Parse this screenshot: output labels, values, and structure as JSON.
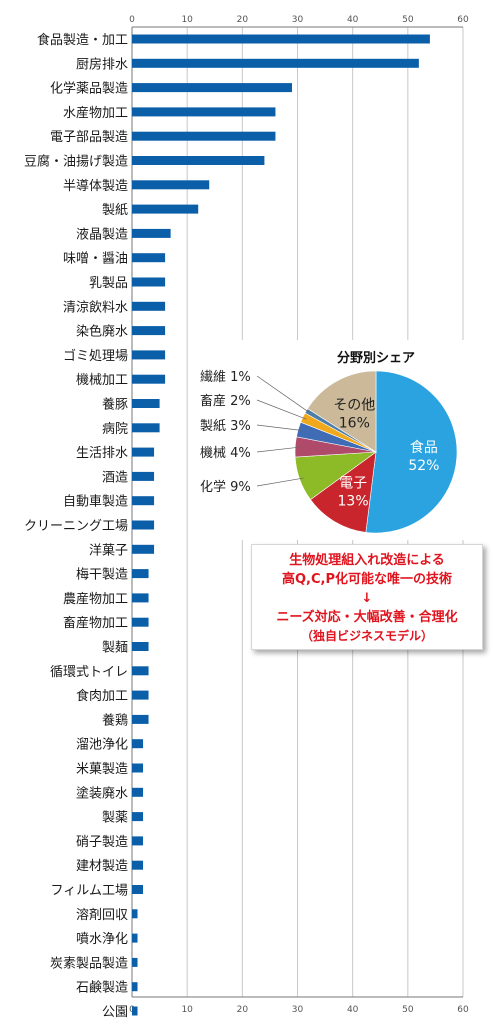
{
  "colors": {
    "bar": "#0b5ea8",
    "grid": "#c8c8c8",
    "axis": "#777777",
    "callout_text": "#e0141e",
    "pie_leader": "#666666"
  },
  "chart_data": [
    {
      "type": "bar",
      "orientation": "horizontal",
      "title": "",
      "xlabel": "",
      "ylabel": "",
      "xlim": [
        0,
        60
      ],
      "x_ticks": [
        "0",
        "10",
        "20",
        "30",
        "40",
        "50",
        "60"
      ],
      "grid": true,
      "categories": [
        "食品製造・加工",
        "厨房排水",
        "化学薬品製造",
        "水産物加工",
        "電子部品製造",
        "豆腐・油揚げ製造",
        "半導体製造",
        "製紙",
        "液晶製造",
        "味噌・醤油",
        "乳製品",
        "清涼飲料水",
        "染色廃水",
        "ゴミ処理場",
        "機械加工",
        "養豚",
        "病院",
        "生活排水",
        "酒造",
        "自動車製造",
        "クリーニング工場",
        "洋菓子",
        "梅干製造",
        "農産物加工",
        "畜産物加工",
        "製麺",
        "循環式トイレ",
        "食肉加工",
        "養鶏",
        "溜池浄化",
        "米菓製造",
        "塗装廃水",
        "製薬",
        "硝子製造",
        "建材製造",
        "フィルム工場",
        "溶剤回収",
        "噴水浄化",
        "炭素製品製造",
        "石鹸製造",
        "公園"
      ],
      "values": [
        54,
        52,
        29,
        26,
        26,
        24,
        14,
        12,
        7,
        6,
        6,
        6,
        6,
        6,
        6,
        5,
        5,
        4,
        4,
        4,
        4,
        4,
        3,
        3,
        3,
        3,
        3,
        3,
        3,
        2,
        2,
        2,
        2,
        2,
        2,
        2,
        1,
        1,
        1,
        1,
        1
      ]
    },
    {
      "type": "pie",
      "title": "分野別シェア",
      "slices": [
        {
          "name": "食品",
          "value": 52,
          "label": "食品",
          "pct": "52%",
          "color": "#2aa3e0"
        },
        {
          "name": "電子",
          "value": 13,
          "label": "電子",
          "pct": "13%",
          "color": "#c9252c"
        },
        {
          "name": "化学",
          "value": 9,
          "label": "化学 9%",
          "color": "#8dbb28"
        },
        {
          "name": "機械",
          "value": 4,
          "label": "機械 4%",
          "color": "#b04a6a"
        },
        {
          "name": "製紙",
          "value": 3,
          "label": "製紙 3%",
          "color": "#3f6cb5"
        },
        {
          "name": "畜産",
          "value": 2,
          "label": "畜産 2%",
          "color": "#f0a81c"
        },
        {
          "name": "繊維",
          "value": 1,
          "label": "繊維 1%",
          "color": "#4d7ea8"
        },
        {
          "name": "その他",
          "value": 16,
          "label": "その他",
          "pct": "16%",
          "color": "#cbb99a"
        }
      ]
    }
  ],
  "callout": {
    "line1": "生物処理組入れ改造による",
    "line2": "高Q,C,P化可能な唯一の技術",
    "arrow": "↓",
    "line3": "ニーズ対応・大幅改善・合理化",
    "line4": "（独自ビジネスモデル）"
  }
}
